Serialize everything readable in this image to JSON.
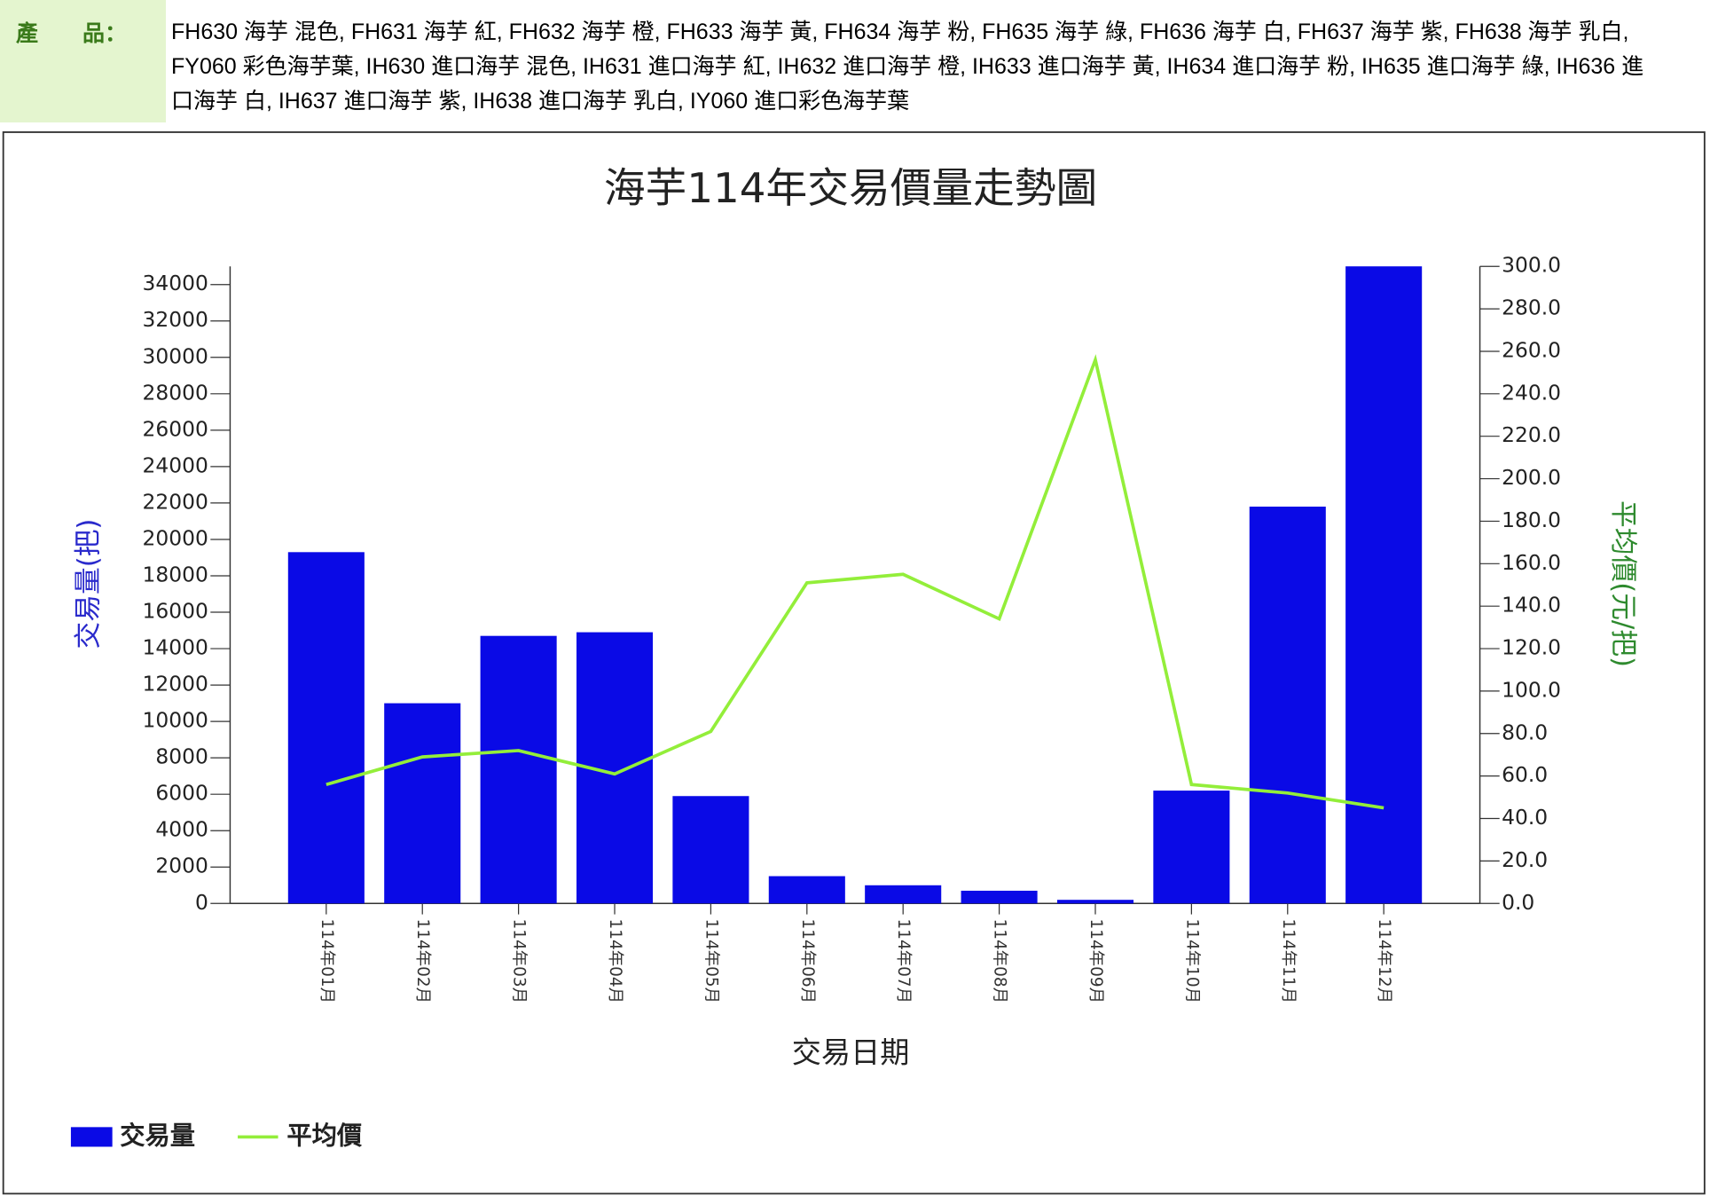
{
  "header": {
    "label": "產　　品：",
    "products": "FH630 海芋 混色, FH631 海芋 紅, FH632 海芋 橙, FH633 海芋 黃, FH634 海芋 粉, FH635 海芋 綠, FH636 海芋 白, FH637 海芋 紫, FH638 海芋 乳白, FY060 彩色海芋葉, IH630 進口海芋 混色, IH631 進口海芋 紅, IH632 進口海芋 橙, IH633 進口海芋 黃, IH634 進口海芋 粉, IH635 進口海芋 綠, IH636 進口海芋 白, IH637 進口海芋 紫, IH638 進口海芋 乳白, IY060 進口彩色海芋葉"
  },
  "chart_data": {
    "type": "bar-line",
    "title": "海芋114年交易價量走勢圖",
    "x_label": "交易日期",
    "y_label": "交易量(把)",
    "y2_label": "平均價(元/把)",
    "categories": [
      "114年01月",
      "114年02月",
      "114年03月",
      "114年04月",
      "114年05月",
      "114年06月",
      "114年07月",
      "114年08月",
      "114年09月",
      "114年10月",
      "114年11月",
      "114年12月"
    ],
    "series": [
      {
        "name": "交易量",
        "type": "bar",
        "color": "#0a0ae6",
        "axis": "y",
        "values": [
          19300,
          11000,
          14700,
          14900,
          5900,
          1500,
          1000,
          700,
          200,
          6200,
          21800,
          35000
        ]
      },
      {
        "name": "平均價",
        "type": "line",
        "color": "#93ee3a",
        "axis": "y2",
        "values": [
          56,
          69,
          72,
          61,
          81,
          151,
          155,
          134,
          256,
          56,
          52,
          45
        ]
      }
    ],
    "ylim": [
      0,
      35000
    ],
    "yticks": [
      0,
      2000,
      4000,
      6000,
      8000,
      10000,
      12000,
      14000,
      16000,
      18000,
      20000,
      22000,
      24000,
      26000,
      28000,
      30000,
      32000,
      34000
    ],
    "y2lim": [
      0,
      300
    ],
    "y2ticks": [
      {
        "value": 0,
        "label": "0.0"
      },
      {
        "value": 20,
        "label": "20.0"
      },
      {
        "value": 40,
        "label": "40.0"
      },
      {
        "value": 60,
        "label": "60.0"
      },
      {
        "value": 80,
        "label": "80.0"
      },
      {
        "value": 100,
        "label": "100.0"
      },
      {
        "value": 120,
        "label": "120.0"
      },
      {
        "value": 140,
        "label": "140.0"
      },
      {
        "value": 160,
        "label": "160.0"
      },
      {
        "value": 180,
        "label": "180.0"
      },
      {
        "value": 200,
        "label": "200.0"
      },
      {
        "value": 220,
        "label": "220.0"
      },
      {
        "value": 240,
        "label": "240.0"
      },
      {
        "value": 260,
        "label": "260.0"
      },
      {
        "value": 280,
        "label": "280.0"
      },
      {
        "value": 300,
        "label": "300.0"
      }
    ],
    "legend": "bottom-left"
  }
}
